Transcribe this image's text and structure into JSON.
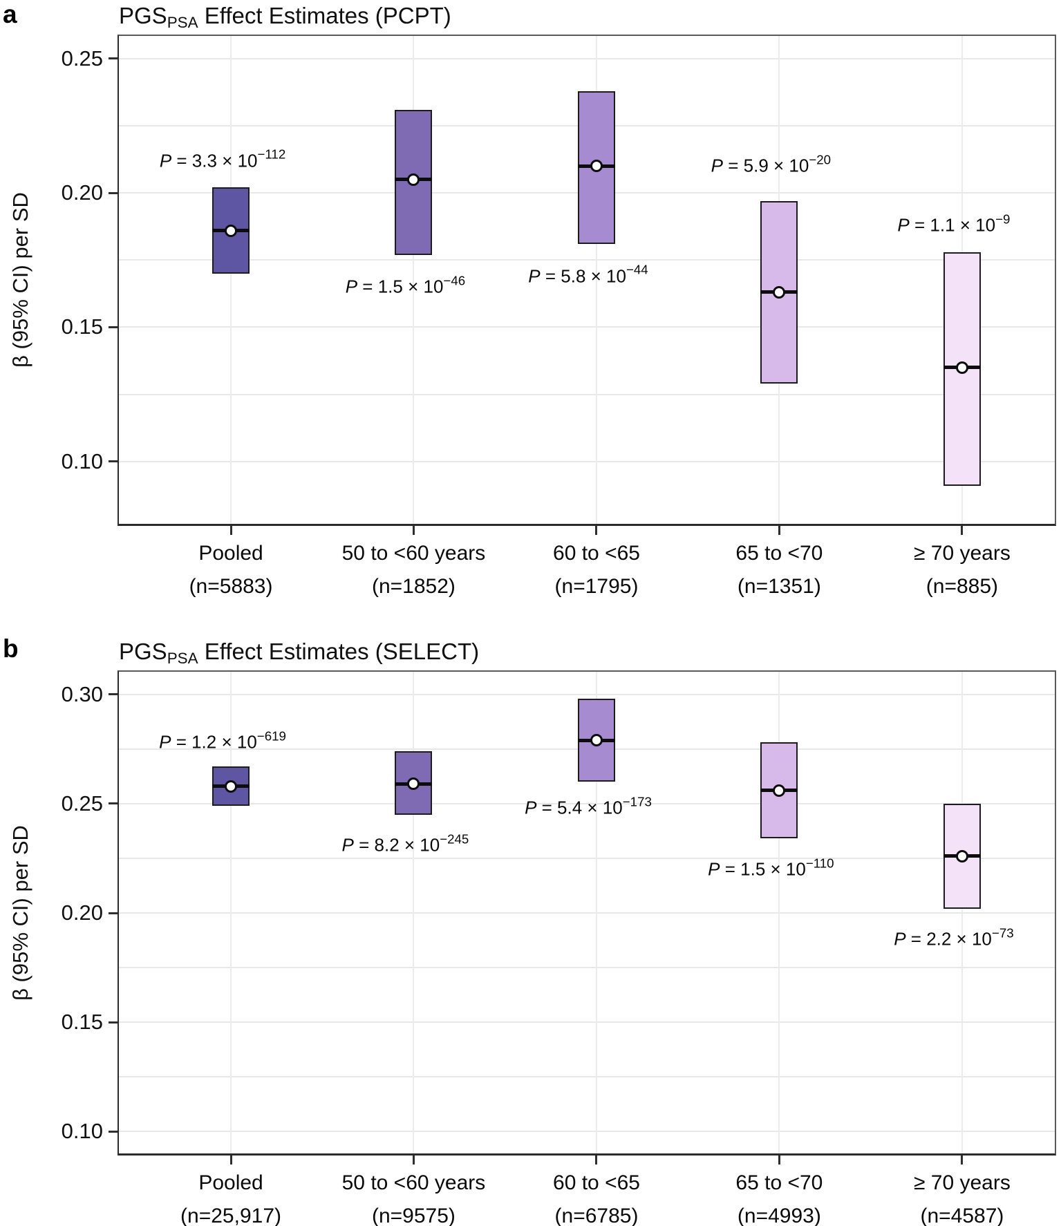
{
  "figure": {
    "p_symbol": "P",
    "panel_letters": [
      "a",
      "b"
    ]
  },
  "chart_data": [
    {
      "type": "box",
      "study": "PCPT",
      "title_pre": "PGS",
      "title_sub": "PSA",
      "title_post": " Effect Estimates (PCPT)",
      "ylabel": "β (95% CI) per SD",
      "ylim": [
        0.076,
        0.259
      ],
      "yticks": [
        "0.25",
        "0.20",
        "0.15",
        "0.10"
      ],
      "ytick_values": [
        0.25,
        0.2,
        0.15,
        0.1
      ],
      "gridline_step": 0.025,
      "legend": "none",
      "categories": [
        "Pooled",
        "50 to <60 years",
        "60 to <65",
        "65 to <70",
        "≥ 70 years"
      ],
      "n_labels": [
        "(n=5883)",
        "(n=1852)",
        "(n=1795)",
        "(n=1351)",
        "(n=885)"
      ],
      "estimates": [
        0.186,
        0.205,
        0.21,
        0.163,
        0.135
      ],
      "ci_low": [
        0.17,
        0.177,
        0.181,
        0.129,
        0.091
      ],
      "ci_high": [
        0.202,
        0.231,
        0.238,
        0.197,
        0.178
      ],
      "bar_colors": [
        "#5E56A3",
        "#7E6BB3",
        "#A78BD0",
        "#D7BAEA",
        "#F3E2F8"
      ],
      "p_values": [
        {
          "base": " = 3.3 × 10",
          "exp": "−112",
          "label_y": 0.212
        },
        {
          "base": " = 1.5 × 10",
          "exp": "−46",
          "label_y": 0.165
        },
        {
          "base": " = 5.8 × 10",
          "exp": "−44",
          "label_y": 0.169
        },
        {
          "base": " = 5.9 × 10",
          "exp": "−20",
          "label_y": 0.21
        },
        {
          "base": " = 1.1 × 10",
          "exp": "−9",
          "label_y": 0.188
        }
      ]
    },
    {
      "type": "box",
      "study": "SELECT",
      "title_pre": "PGS",
      "title_sub": "PSA",
      "title_post": " Effect Estimates (SELECT)",
      "ylabel": "β (95% CI) per SD",
      "ylim": [
        0.089,
        0.311
      ],
      "yticks": [
        "0.30",
        "0.25",
        "0.20",
        "0.15",
        "0.10"
      ],
      "ytick_values": [
        0.3,
        0.25,
        0.2,
        0.15,
        0.1
      ],
      "gridline_step": 0.025,
      "legend": "none",
      "categories": [
        "Pooled",
        "50 to <60 years",
        "60 to <65",
        "65 to <70",
        "≥ 70 years"
      ],
      "n_labels": [
        "(n=25,917)",
        "(n=9575)",
        "(n=6785)",
        "(n=4993)",
        "(n=4587)"
      ],
      "estimates": [
        0.258,
        0.259,
        0.279,
        0.256,
        0.226
      ],
      "ci_low": [
        0.249,
        0.245,
        0.26,
        0.234,
        0.202
      ],
      "ci_high": [
        0.267,
        0.274,
        0.298,
        0.278,
        0.25
      ],
      "bar_colors": [
        "#5E56A3",
        "#7E6BB3",
        "#A78BD0",
        "#D7BAEA",
        "#F3E2F8"
      ],
      "p_values": [
        {
          "base": " = 1.2 × 10",
          "exp": "−619",
          "label_y": 0.278
        },
        {
          "base": " = 8.2 × 10",
          "exp": "−245",
          "label_y": 0.231
        },
        {
          "base": " = 5.4 × 10",
          "exp": "−173",
          "label_y": 0.248
        },
        {
          "base": " = 1.5 × 10",
          "exp": "−110",
          "label_y": 0.22
        },
        {
          "base": " = 2.2 × 10",
          "exp": "−73",
          "label_y": 0.188
        }
      ]
    }
  ]
}
